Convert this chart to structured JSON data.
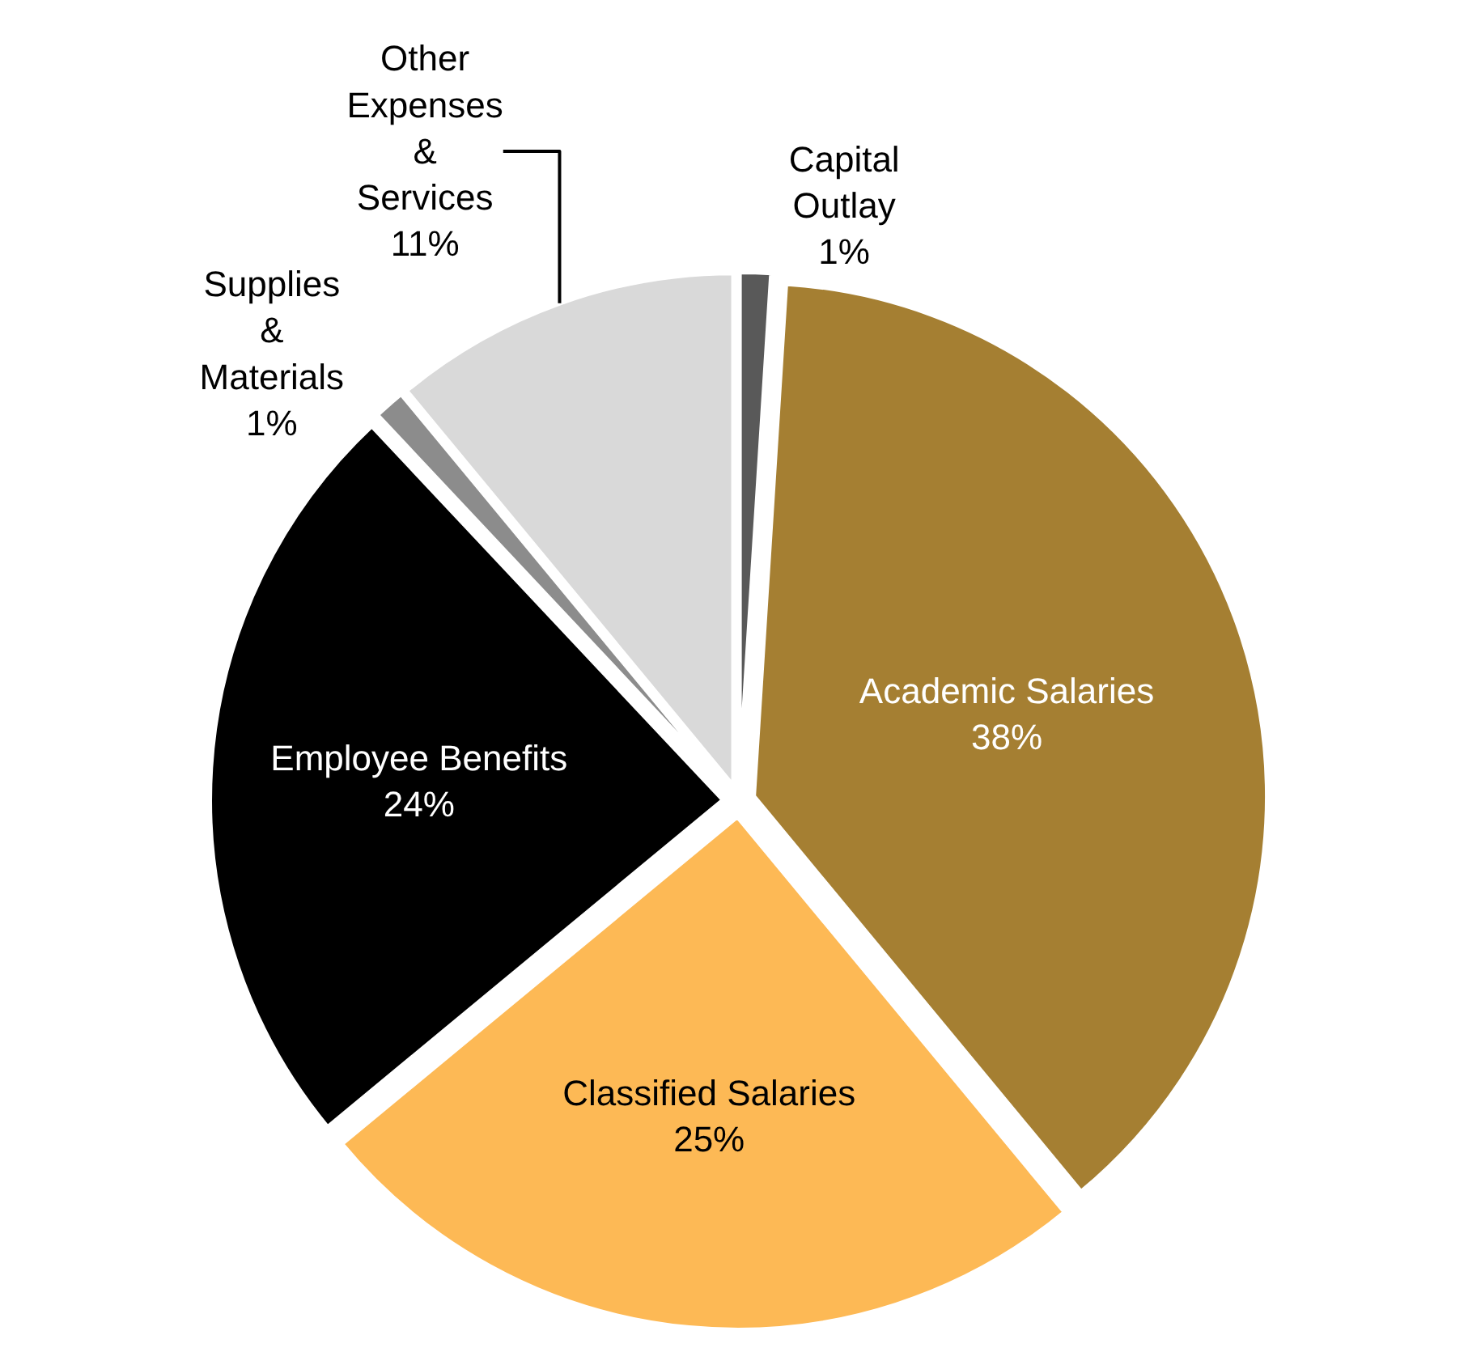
{
  "chart_data": {
    "type": "pie",
    "categories": [
      "Capital Outlay",
      "Academic Salaries",
      "Classified Salaries",
      "Employee Benefits",
      "Supplies & Materials",
      "Other Expenses & Services"
    ],
    "values": [
      1,
      38,
      25,
      24,
      1,
      11
    ],
    "colors": [
      "#595959",
      "#a57f32",
      "#fdb955",
      "#000000",
      "#8c8c8c",
      "#d9d9d9"
    ],
    "value_labels": [
      "1%",
      "38%",
      "25%",
      "24%",
      "1%",
      "11%"
    ],
    "legend": false
  }
}
